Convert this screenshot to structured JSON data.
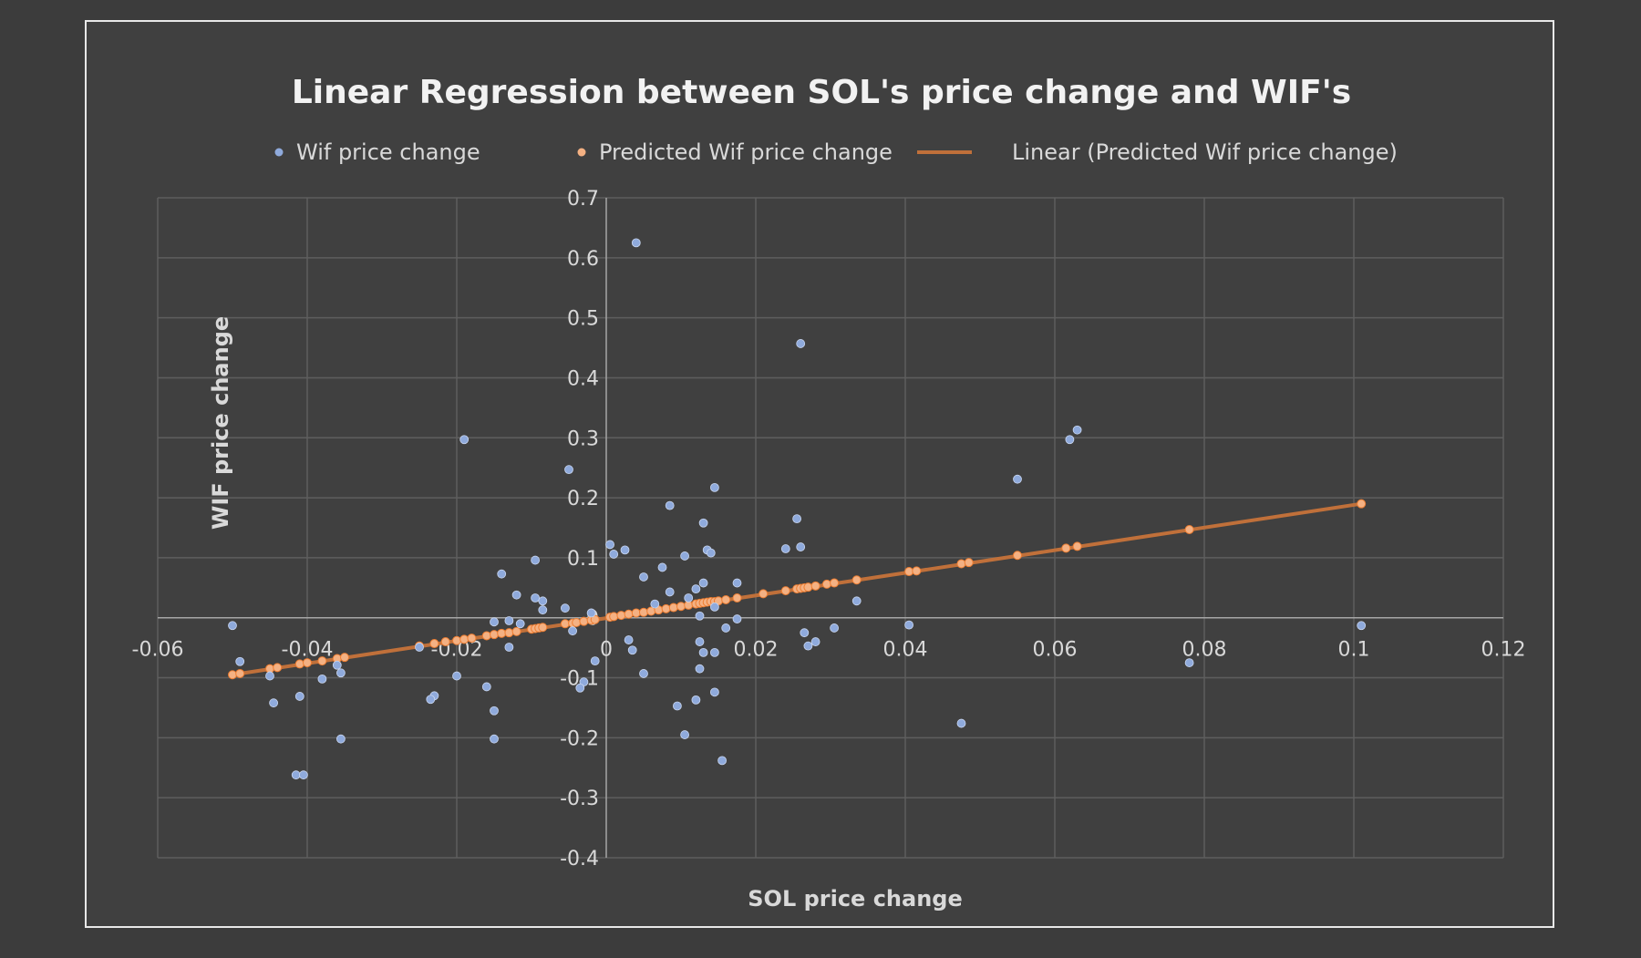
{
  "chart_data": {
    "type": "scatter",
    "title": "Linear Regression between SOL's price change and WIF's",
    "xlabel": "SOL price change",
    "ylabel": "WIF price change",
    "xlim": [
      -0.06,
      0.12
    ],
    "ylim": [
      -0.4,
      0.7
    ],
    "x_ticks": [
      -0.06,
      -0.04,
      -0.02,
      0,
      0.02,
      0.04,
      0.06,
      0.08,
      0.1,
      0.12
    ],
    "x_tick_labels": [
      "-0.06",
      "-0.04",
      "-0.02",
      "0",
      "0.02",
      "0.04",
      "0.06",
      "0.08",
      "0.1",
      "0.12"
    ],
    "y_ticks": [
      -0.4,
      -0.3,
      -0.2,
      -0.1,
      0,
      0.1,
      0.2,
      0.3,
      0.4,
      0.5,
      0.6,
      0.7
    ],
    "y_tick_labels": [
      "-0.4",
      "-0.3",
      "-0.2",
      "-0.1",
      "0",
      "0.1",
      "0.2",
      "0.3",
      "0.4",
      "0.5",
      "0.6",
      "0.7"
    ],
    "grid": true,
    "legend_position": "top",
    "legend": [
      {
        "label": "Wif price change",
        "kind": "marker",
        "color": "#8faadc"
      },
      {
        "label": "Predicted Wif price change",
        "kind": "marker",
        "color": "#f4b183"
      },
      {
        "label": "Linear (Predicted Wif price change)",
        "kind": "line",
        "color": "#c0703a"
      }
    ],
    "trendline": {
      "name": "Linear (Predicted Wif price change)",
      "x": [
        -0.05,
        0.101
      ],
      "y": [
        -0.095,
        0.19
      ],
      "color": "#c0703a"
    },
    "series": [
      {
        "name": "Wif price change",
        "color": "#8faadc",
        "points": [
          [
            0.004,
            0.625
          ],
          [
            0.026,
            0.457
          ],
          [
            -0.019,
            0.297
          ],
          [
            -0.005,
            0.247
          ],
          [
            0.0145,
            0.217
          ],
          [
            0.062,
            0.297
          ],
          [
            0.063,
            0.313
          ],
          [
            0.055,
            0.231
          ],
          [
            0.0085,
            0.187
          ],
          [
            0.0255,
            0.165
          ],
          [
            0.013,
            0.158
          ],
          [
            0.026,
            0.118
          ],
          [
            0.024,
            0.115
          ],
          [
            0.0135,
            0.113
          ],
          [
            0.014,
            0.108
          ],
          [
            0.0005,
            0.122
          ],
          [
            0.001,
            0.106
          ],
          [
            0.0025,
            0.113
          ],
          [
            0.0105,
            0.103
          ],
          [
            -0.0095,
            0.096
          ],
          [
            0.0075,
            0.084
          ],
          [
            -0.014,
            0.073
          ],
          [
            0.005,
            0.068
          ],
          [
            0.013,
            0.058
          ],
          [
            0.0175,
            0.058
          ],
          [
            0.012,
            0.048
          ],
          [
            0.0085,
            0.043
          ],
          [
            -0.012,
            0.038
          ],
          [
            -0.0095,
            0.033
          ],
          [
            -0.0085,
            0.028
          ],
          [
            0.0335,
            0.028
          ],
          [
            0.011,
            0.033
          ],
          [
            0.0065,
            0.023
          ],
          [
            -0.0085,
            0.013
          ],
          [
            -0.0055,
            0.016
          ],
          [
            0.0145,
            0.018
          ],
          [
            -0.002,
            0.008
          ],
          [
            0.0125,
            0.003
          ],
          [
            0.0175,
            -0.002
          ],
          [
            -0.015,
            -0.007
          ],
          [
            -0.013,
            -0.005
          ],
          [
            -0.0115,
            -0.01
          ],
          [
            0.0305,
            -0.017
          ],
          [
            0.016,
            -0.017
          ],
          [
            0.0405,
            -0.012
          ],
          [
            0.101,
            -0.013
          ],
          [
            -0.05,
            -0.013
          ],
          [
            -0.0045,
            -0.022
          ],
          [
            0.0265,
            -0.025
          ],
          [
            0.003,
            -0.037
          ],
          [
            0.028,
            -0.04
          ],
          [
            0.0125,
            -0.04
          ],
          [
            0.027,
            -0.047
          ],
          [
            -0.025,
            -0.049
          ],
          [
            -0.013,
            -0.049
          ],
          [
            0.0035,
            -0.054
          ],
          [
            0.0145,
            -0.058
          ],
          [
            0.013,
            -0.058
          ],
          [
            -0.049,
            -0.073
          ],
          [
            -0.0015,
            -0.072
          ],
          [
            0.078,
            -0.075
          ],
          [
            -0.036,
            -0.079
          ],
          [
            0.0125,
            -0.085
          ],
          [
            -0.0355,
            -0.092
          ],
          [
            0.005,
            -0.093
          ],
          [
            -0.02,
            -0.097
          ],
          [
            -0.038,
            -0.102
          ],
          [
            -0.045,
            -0.097
          ],
          [
            -0.003,
            -0.107
          ],
          [
            -0.0035,
            -0.117
          ],
          [
            -0.016,
            -0.115
          ],
          [
            0.0145,
            -0.124
          ],
          [
            -0.023,
            -0.13
          ],
          [
            -0.041,
            -0.131
          ],
          [
            -0.0235,
            -0.136
          ],
          [
            0.012,
            -0.137
          ],
          [
            -0.0445,
            -0.142
          ],
          [
            0.0095,
            -0.147
          ],
          [
            -0.015,
            -0.155
          ],
          [
            0.0475,
            -0.176
          ],
          [
            0.0105,
            -0.195
          ],
          [
            -0.0355,
            -0.202
          ],
          [
            -0.015,
            -0.202
          ],
          [
            0.0155,
            -0.238
          ],
          [
            -0.0415,
            -0.262
          ],
          [
            -0.0405,
            -0.262
          ]
        ]
      },
      {
        "name": "Predicted Wif price change",
        "color": "#f4b183",
        "points": [
          [
            -0.05,
            -0.095
          ],
          [
            -0.049,
            -0.093
          ],
          [
            -0.045,
            -0.085
          ],
          [
            -0.044,
            -0.083
          ],
          [
            -0.041,
            -0.077
          ],
          [
            -0.04,
            -0.075
          ],
          [
            -0.038,
            -0.072
          ],
          [
            -0.036,
            -0.068
          ],
          [
            -0.035,
            -0.066
          ],
          [
            -0.025,
            -0.047
          ],
          [
            -0.023,
            -0.043
          ],
          [
            -0.0215,
            -0.04
          ],
          [
            -0.02,
            -0.038
          ],
          [
            -0.019,
            -0.036
          ],
          [
            -0.018,
            -0.034
          ],
          [
            -0.016,
            -0.03
          ],
          [
            -0.015,
            -0.028
          ],
          [
            -0.014,
            -0.026
          ],
          [
            -0.013,
            -0.025
          ],
          [
            -0.012,
            -0.023
          ],
          [
            -0.01,
            -0.019
          ],
          [
            -0.0095,
            -0.018
          ],
          [
            -0.009,
            -0.017
          ],
          [
            -0.0085,
            -0.016
          ],
          [
            -0.0055,
            -0.01
          ],
          [
            -0.0045,
            -0.009
          ],
          [
            -0.004,
            -0.008
          ],
          [
            -0.003,
            -0.006
          ],
          [
            -0.002,
            -0.004
          ],
          [
            -0.0015,
            -0.003
          ],
          [
            0.0005,
            0.001
          ],
          [
            0.001,
            0.002
          ],
          [
            0.002,
            0.004
          ],
          [
            0.003,
            0.006
          ],
          [
            0.004,
            0.008
          ],
          [
            0.005,
            0.009
          ],
          [
            0.006,
            0.011
          ],
          [
            0.007,
            0.013
          ],
          [
            0.008,
            0.015
          ],
          [
            0.009,
            0.017
          ],
          [
            0.01,
            0.019
          ],
          [
            0.011,
            0.021
          ],
          [
            0.012,
            0.023
          ],
          [
            0.0125,
            0.024
          ],
          [
            0.013,
            0.025
          ],
          [
            0.0135,
            0.026
          ],
          [
            0.014,
            0.027
          ],
          [
            0.0145,
            0.027
          ],
          [
            0.015,
            0.028
          ],
          [
            0.016,
            0.03
          ],
          [
            0.0175,
            0.033
          ],
          [
            0.021,
            0.04
          ],
          [
            0.024,
            0.045
          ],
          [
            0.0255,
            0.048
          ],
          [
            0.026,
            0.049
          ],
          [
            0.0265,
            0.05
          ],
          [
            0.027,
            0.051
          ],
          [
            0.028,
            0.053
          ],
          [
            0.0295,
            0.056
          ],
          [
            0.0305,
            0.058
          ],
          [
            0.0335,
            0.063
          ],
          [
            0.0405,
            0.077
          ],
          [
            0.0415,
            0.078
          ],
          [
            0.0475,
            0.09
          ],
          [
            0.0485,
            0.092
          ],
          [
            0.055,
            0.104
          ],
          [
            0.0615,
            0.116
          ],
          [
            0.063,
            0.119
          ],
          [
            0.078,
            0.147
          ],
          [
            0.101,
            0.19
          ]
        ]
      }
    ]
  }
}
